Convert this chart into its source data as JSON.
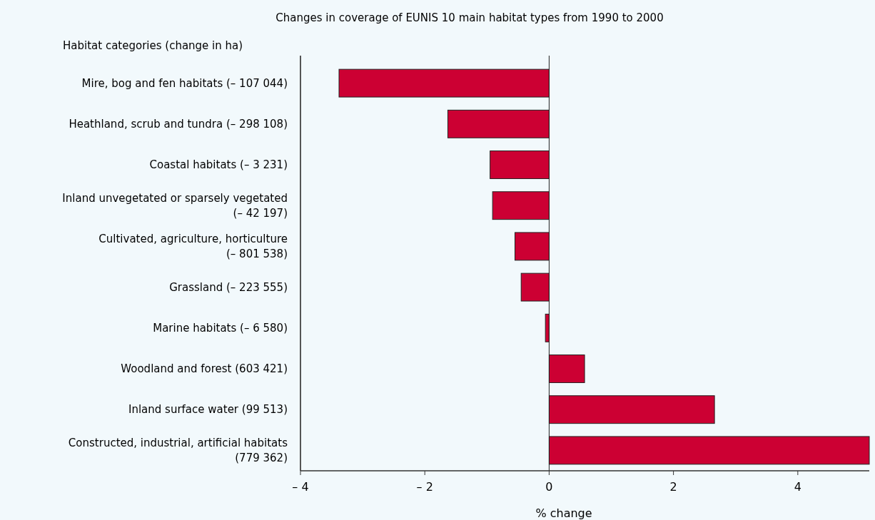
{
  "chart_data": {
    "type": "bar",
    "orientation": "horizontal",
    "title": "Changes in coverage of EUNIS 10 main habitat types from 1990 to 2000",
    "ylabel": "Habitat categories (change in ha)",
    "xlabel": "% change",
    "categories": [
      "Mire, bog and fen habitats (– 107 044)",
      "Heathland, scrub and tundra (– 298 108)",
      "Coastal habitats (– 3 231)",
      "Inland unvegetated or sparsely vegetated (– 42 197)",
      "Cultivated, agriculture, horticulture (– 801 538)",
      "Grassland (– 223 555)",
      "Marine habitats (– 6 580)",
      "Woodland and forest (603 421)",
      "Inland surface water (99 513)",
      "Constructed, industrial, artificial habitats (779 362)"
    ],
    "values": [
      -3.38,
      -1.63,
      -0.95,
      -0.91,
      -0.55,
      -0.45,
      -0.06,
      0.57,
      2.66,
      5.15
    ],
    "color": "#cc0033",
    "xlim": [
      -4,
      5.15
    ],
    "xticks": [
      {
        "value": -4,
        "label": "– 4"
      },
      {
        "value": -2,
        "label": "– 2"
      },
      0,
      2,
      4
    ],
    "data_labels": false
  }
}
